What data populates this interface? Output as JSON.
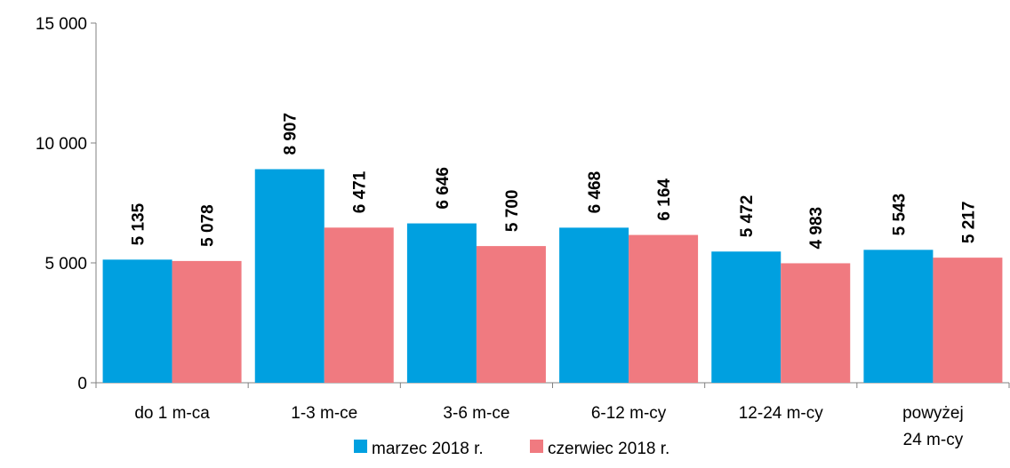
{
  "chart_data": {
    "type": "bar",
    "categories": [
      [
        "do 1 m-ca"
      ],
      [
        "1-3 m-ce"
      ],
      [
        "3-6 m-ce"
      ],
      [
        "6-12 m-cy"
      ],
      [
        "12-24 m-cy"
      ],
      [
        "powyżej",
        "24 m-cy"
      ]
    ],
    "series": [
      {
        "name": "marzec 2018 r.",
        "color": "#00A0E0",
        "values": [
          5135,
          8907,
          6646,
          6468,
          5472,
          5543
        ],
        "labels": [
          "5 135",
          "8 907",
          "6 646",
          "6 468",
          "5 472",
          "5 543"
        ]
      },
      {
        "name": "czerwiec 2018 r.",
        "color": "#F07A80",
        "values": [
          5078,
          6471,
          5700,
          6164,
          4983,
          5217
        ],
        "labels": [
          "5 078",
          "6 471",
          "5 700",
          "6 164",
          "4 983",
          "5 217"
        ]
      }
    ],
    "ylim": [
      0,
      15000
    ],
    "yticks": [
      0,
      5000,
      10000,
      15000
    ],
    "ytick_labels": [
      "0",
      "5 000",
      "10 000",
      "15 000"
    ],
    "grid": false,
    "legend": "bottom"
  }
}
